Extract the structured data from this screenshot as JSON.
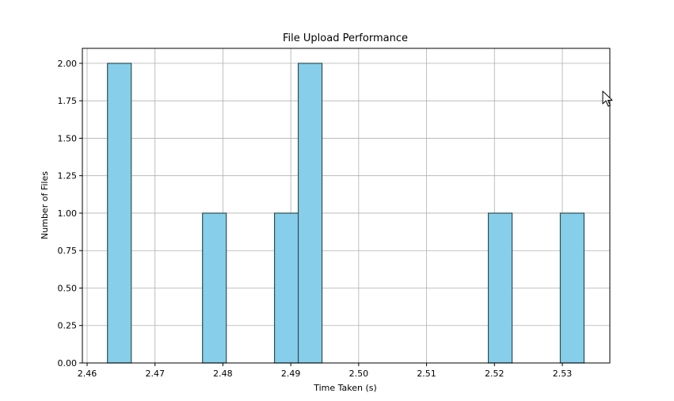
{
  "chart_data": {
    "type": "bar",
    "title": "File Upload Performance",
    "xlabel": "Time Taken (s)",
    "ylabel": "Number of Files",
    "xlim": [
      2.4593,
      2.537
    ],
    "ylim": [
      0,
      2.1
    ],
    "xticks": [
      2.46,
      2.47,
      2.48,
      2.49,
      2.5,
      2.51,
      2.52,
      2.53
    ],
    "xtick_labels": [
      "2.46",
      "2.47",
      "2.48",
      "2.49",
      "2.50",
      "2.51",
      "2.52",
      "2.53"
    ],
    "yticks": [
      0,
      0.25,
      0.5,
      0.75,
      1.0,
      1.25,
      1.5,
      1.75,
      2.0
    ],
    "ytick_labels": [
      "0.00",
      "0.25",
      "0.50",
      "0.75",
      "1.00",
      "1.25",
      "1.50",
      "1.75",
      "2.00"
    ],
    "grid": true,
    "bar_color": "#87ceeb",
    "edge_color": "#2f4f4f",
    "bins": [
      {
        "x0": 2.463,
        "x1": 2.4665,
        "value": 2
      },
      {
        "x0": 2.477,
        "x1": 2.4805,
        "value": 1
      },
      {
        "x0": 2.4876,
        "x1": 2.4911,
        "value": 1
      },
      {
        "x0": 2.4911,
        "x1": 2.4946,
        "value": 2
      },
      {
        "x0": 2.5191,
        "x1": 2.5226,
        "value": 1
      },
      {
        "x0": 2.5297,
        "x1": 2.5332,
        "value": 1
      }
    ]
  }
}
